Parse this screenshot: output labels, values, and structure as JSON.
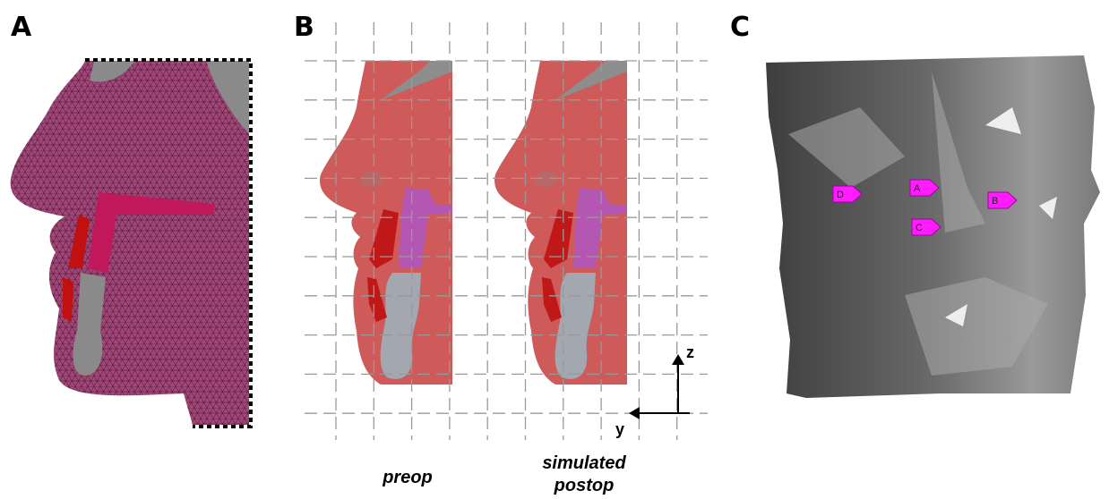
{
  "panels": [
    {
      "label": "A"
    },
    {
      "label": "B",
      "captions": [
        {
          "lines": [
            "preop"
          ]
        },
        {
          "lines": [
            "simulated",
            "postop"
          ]
        }
      ],
      "axes": {
        "vertical": "z",
        "horizontal": "y"
      }
    },
    {
      "label": "C",
      "markers": [
        "D",
        "A",
        "B",
        "C"
      ]
    }
  ]
}
